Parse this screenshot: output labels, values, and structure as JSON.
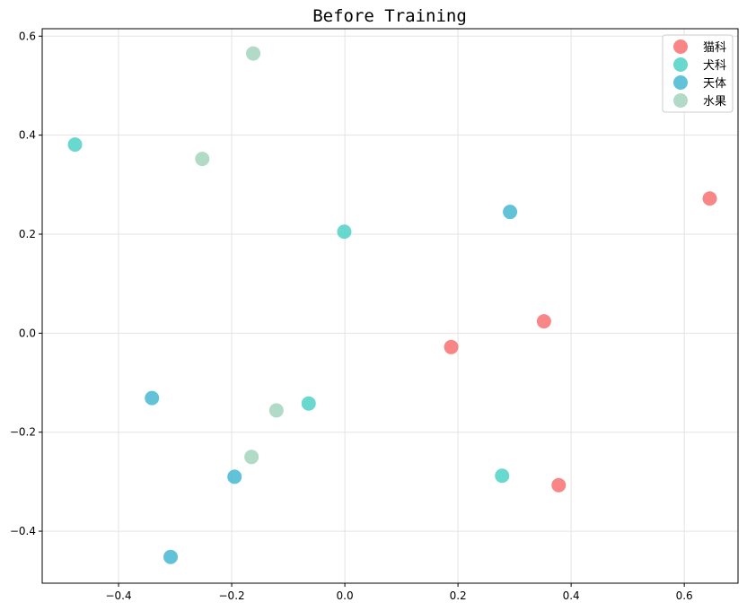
{
  "chart_data": {
    "type": "scatter",
    "title": "Before Training",
    "xlabel": "",
    "ylabel": "",
    "xlim": [
      -0.535,
      0.695
    ],
    "ylim": [
      -0.505,
      0.615
    ],
    "x_ticks": [
      -0.4,
      -0.2,
      0.0,
      0.2,
      0.4,
      0.6
    ],
    "x_tick_labels": [
      "−0.4",
      "−0.2",
      "0.0",
      "0.2",
      "0.4",
      "0.6"
    ],
    "y_ticks": [
      -0.4,
      -0.2,
      0.0,
      0.2,
      0.4,
      0.6
    ],
    "y_tick_labels": [
      "−0.4",
      "−0.2",
      "0.0",
      "0.2",
      "0.4",
      "0.6"
    ],
    "grid": true,
    "legend_position": "top-right",
    "series": [
      {
        "name": "猫科",
        "color": "#f87171",
        "points": [
          [
            0.645,
            0.272
          ],
          [
            0.352,
            0.024
          ],
          [
            0.188,
            -0.028
          ],
          [
            0.378,
            -0.307
          ]
        ]
      },
      {
        "name": "犬科",
        "color": "#4fd1c5",
        "points": [
          [
            -0.477,
            0.381
          ],
          [
            -0.001,
            0.205
          ],
          [
            -0.064,
            -0.142
          ],
          [
            0.278,
            -0.288
          ]
        ]
      },
      {
        "name": "天体",
        "color": "#45b7d1",
        "points": [
          [
            0.292,
            0.245
          ],
          [
            -0.341,
            -0.131
          ],
          [
            -0.195,
            -0.29
          ],
          [
            -0.308,
            -0.452
          ]
        ]
      },
      {
        "name": "水果",
        "color": "#a3d4bd",
        "points": [
          [
            -0.162,
            0.565
          ],
          [
            -0.252,
            0.352
          ],
          [
            -0.121,
            -0.156
          ],
          [
            -0.165,
            -0.25
          ]
        ]
      }
    ]
  }
}
